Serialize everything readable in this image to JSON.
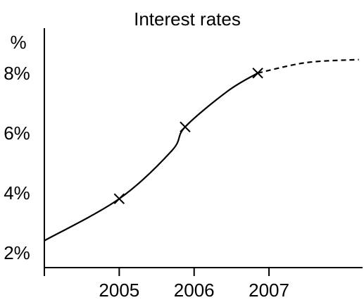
{
  "chart_data": {
    "type": "line",
    "title": "Interest rates",
    "xlabel": "",
    "ylabel": "%",
    "x_tick_labels": [
      "2005",
      "2006",
      "2007"
    ],
    "y_tick_labels": [
      "2%",
      "4%",
      "6%",
      "8%"
    ],
    "xlim": [
      2004.0,
      2008.25
    ],
    "ylim": [
      1.5,
      9.5
    ],
    "grid": false,
    "legend": "none",
    "series": [
      {
        "style": "solid",
        "points": [
          {
            "x": 2004.0,
            "y": 2.4
          },
          {
            "x": 2005.0,
            "y": 3.8
          },
          {
            "x": 2005.7,
            "y": 5.4
          },
          {
            "x": 2005.88,
            "y": 6.2
          },
          {
            "x": 2006.45,
            "y": 7.4
          },
          {
            "x": 2006.85,
            "y": 8.0
          }
        ],
        "markers": [
          {
            "x": 2005.0,
            "y": 3.8
          },
          {
            "x": 2005.88,
            "y": 6.2
          },
          {
            "x": 2006.85,
            "y": 8.0
          }
        ]
      },
      {
        "style": "dashed",
        "points": [
          {
            "x": 2006.85,
            "y": 8.0
          },
          {
            "x": 2007.5,
            "y": 8.35
          },
          {
            "x": 2008.2,
            "y": 8.45
          }
        ]
      }
    ],
    "colors": {
      "line": "#000000",
      "axis": "#000000",
      "background": "#ffffff"
    }
  }
}
